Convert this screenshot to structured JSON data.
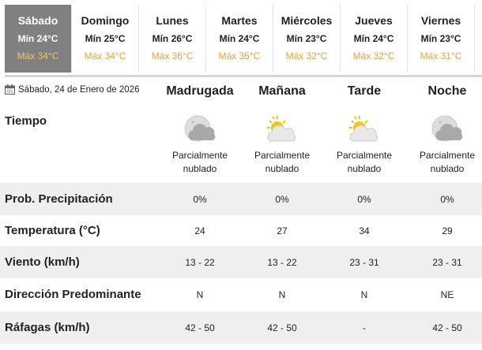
{
  "days": [
    {
      "name": "Sábado",
      "min": "Mín 24°C",
      "max": "Máx 34°C",
      "selected": true
    },
    {
      "name": "Domingo",
      "min": "Mín 25°C",
      "max": "Máx 34°C"
    },
    {
      "name": "Lunes",
      "min": "Mín 26°C",
      "max": "Máx 36°C"
    },
    {
      "name": "Martes",
      "min": "Mín 24°C",
      "max": "Máx 35°C"
    },
    {
      "name": "Miércoles",
      "min": "Mín 23°C",
      "max": "Máx 32°C"
    },
    {
      "name": "Jueves",
      "min": "Mín 24°C",
      "max": "Máx 32°C"
    },
    {
      "name": "Viernes",
      "min": "Mín 23°C",
      "max": "Máx 31°C"
    }
  ],
  "date": "Sábado, 24 de Enero de 2026",
  "periods": [
    "Madrugada",
    "Mañana",
    "Tarde",
    "Noche"
  ],
  "tiempo_label": "Tiempo",
  "conditions": [
    {
      "icon": "moon-cloud-icon",
      "l1": "Parcialmente",
      "l2": "nublado"
    },
    {
      "icon": "sun-cloud-icon",
      "l1": "Parcialmente",
      "l2": "nublado"
    },
    {
      "icon": "sun-cloud-icon",
      "l1": "Parcialmente",
      "l2": "nublado"
    },
    {
      "icon": "moon-cloud-icon",
      "l1": "Parcialmente",
      "l2": "nublado"
    }
  ],
  "rows": [
    {
      "label": "Prob. Precipitación",
      "values": [
        "0%",
        "0%",
        "0%",
        "0%"
      ]
    },
    {
      "label": "Temperatura (°C)",
      "values": [
        "24",
        "27",
        "34",
        "29"
      ]
    },
    {
      "label": "Viento (km/h)",
      "values": [
        "13 - 22",
        "13 - 22",
        "23 - 31",
        "23 - 31"
      ]
    },
    {
      "label": "Dirección Predominante",
      "values": [
        "N",
        "N",
        "N",
        "NE"
      ]
    },
    {
      "label": "Ráfagas (km/h)",
      "values": [
        "42 - 50",
        "42 - 50",
        "-",
        "42 - 50"
      ]
    }
  ],
  "colors": {
    "selected_tab": "#808080",
    "max_temp": "#e8a33c",
    "row_shade": "#efefef"
  }
}
